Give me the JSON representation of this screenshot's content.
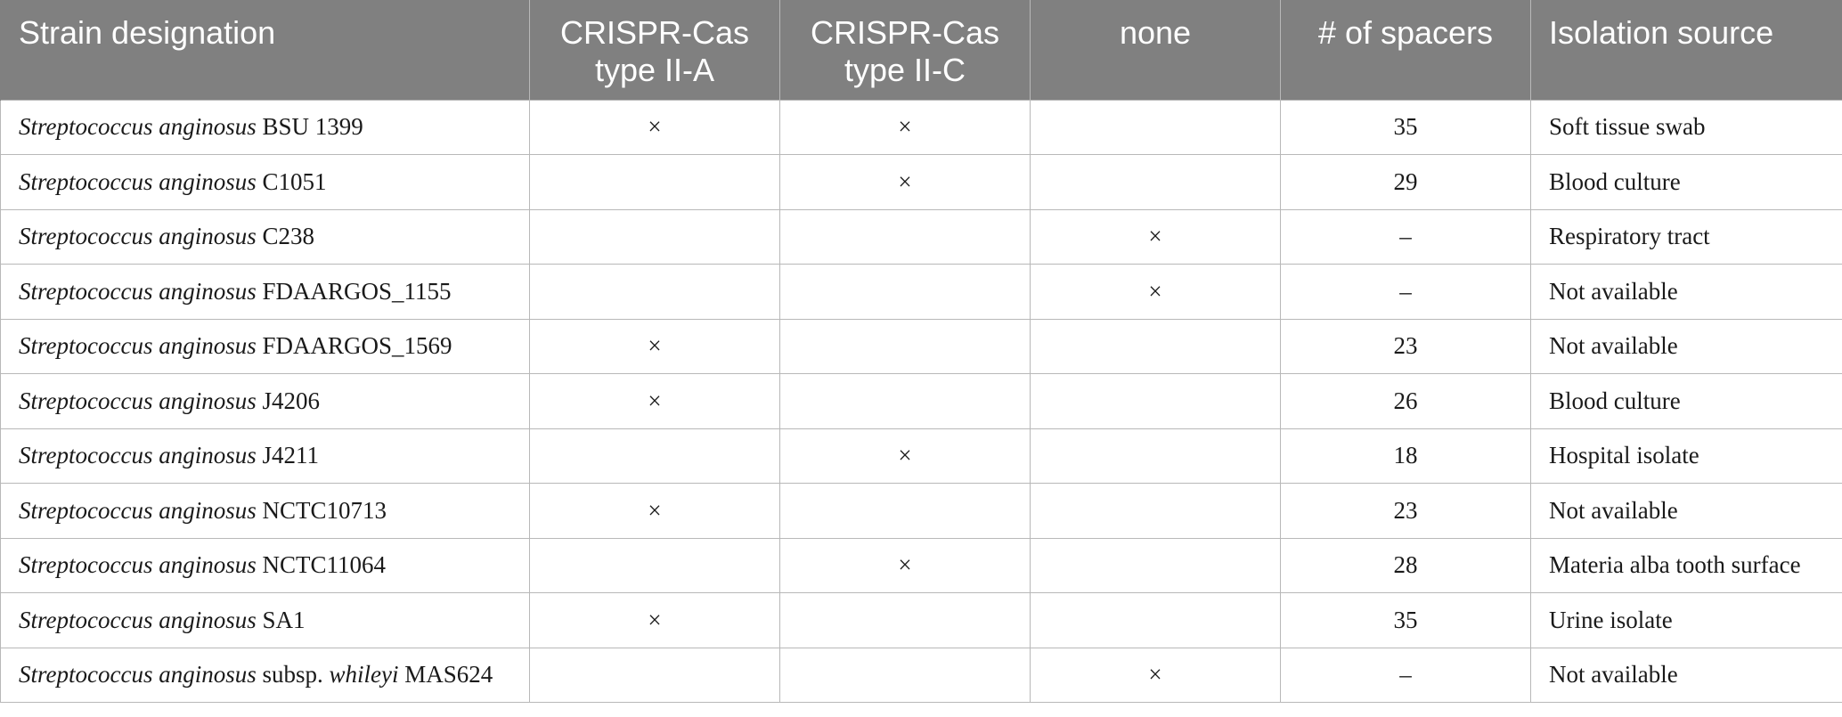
{
  "columns": [
    "Strain designation",
    "CRISPR-Cas type II-A",
    "CRISPR-Cas type II-C",
    "none",
    "# of spacers",
    "Isolation source"
  ],
  "rows": [
    {
      "species": "Streptococcus anginosus",
      "subsp_prefix": "",
      "subsp_epithet": "",
      "strain": "BSU 1399",
      "type_II_A": "×",
      "type_II_C": "×",
      "none": "",
      "spacers": "35",
      "source": "Soft tissue swab"
    },
    {
      "species": "Streptococcus anginosus",
      "subsp_prefix": "",
      "subsp_epithet": "",
      "strain": "C1051",
      "type_II_A": "",
      "type_II_C": "×",
      "none": "",
      "spacers": "29",
      "source": "Blood culture"
    },
    {
      "species": "Streptococcus anginosus",
      "subsp_prefix": "",
      "subsp_epithet": "",
      "strain": "C238",
      "type_II_A": "",
      "type_II_C": "",
      "none": "×",
      "spacers": "–",
      "source": "Respiratory tract"
    },
    {
      "species": "Streptococcus anginosus",
      "subsp_prefix": "",
      "subsp_epithet": "",
      "strain": "FDAARGOS_1155",
      "type_II_A": "",
      "type_II_C": "",
      "none": "×",
      "spacers": "–",
      "source": "Not available"
    },
    {
      "species": "Streptococcus anginosus",
      "subsp_prefix": "",
      "subsp_epithet": "",
      "strain": "FDAARGOS_1569",
      "type_II_A": "×",
      "type_II_C": "",
      "none": "",
      "spacers": "23",
      "source": "Not available"
    },
    {
      "species": "Streptococcus anginosus",
      "subsp_prefix": "",
      "subsp_epithet": "",
      "strain": "J4206",
      "type_II_A": "×",
      "type_II_C": "",
      "none": "",
      "spacers": "26",
      "source": "Blood culture"
    },
    {
      "species": "Streptococcus anginosus",
      "subsp_prefix": "",
      "subsp_epithet": "",
      "strain": "J4211",
      "type_II_A": "",
      "type_II_C": "×",
      "none": "",
      "spacers": "18",
      "source": "Hospital isolate"
    },
    {
      "species": "Streptococcus anginosus",
      "subsp_prefix": "",
      "subsp_epithet": "",
      "strain": "NCTC10713",
      "type_II_A": "×",
      "type_II_C": "",
      "none": "",
      "spacers": "23",
      "source": "Not available"
    },
    {
      "species": "Streptococcus anginosus",
      "subsp_prefix": "",
      "subsp_epithet": "",
      "strain": "NCTC11064",
      "type_II_A": "",
      "type_II_C": "×",
      "none": "",
      "spacers": "28",
      "source": "Materia alba tooth surface"
    },
    {
      "species": "Streptococcus anginosus",
      "subsp_prefix": "",
      "subsp_epithet": "",
      "strain": "SA1",
      "type_II_A": "×",
      "type_II_C": "",
      "none": "",
      "spacers": "35",
      "source": "Urine isolate"
    },
    {
      "species": "Streptococcus anginosus",
      "subsp_prefix": "subsp.",
      "subsp_epithet": "whileyi",
      "strain": "MAS624",
      "type_II_A": "",
      "type_II_C": "",
      "none": "×",
      "spacers": "–",
      "source": "Not available"
    }
  ],
  "colors": {
    "header_bg": "#808080",
    "header_text": "#ffffff",
    "grid": "#b8b8b8",
    "cell_text": "#1a1a1a"
  }
}
